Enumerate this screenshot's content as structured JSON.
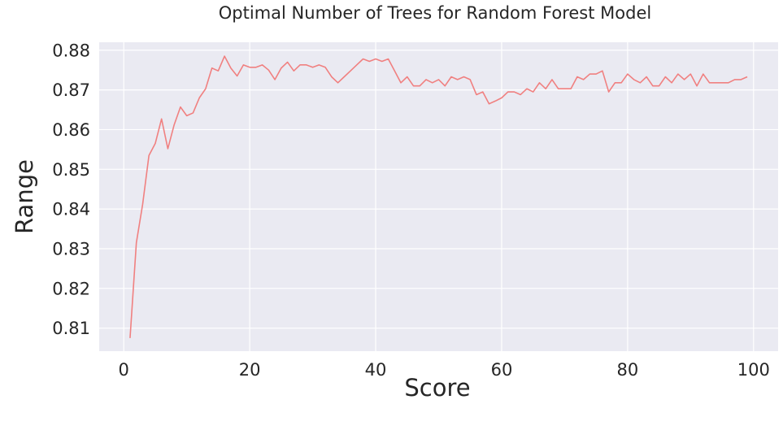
{
  "chart_data": {
    "type": "line",
    "title": "Optimal Number of Trees for Random Forest Model",
    "xlabel": "Score",
    "ylabel": "Range",
    "xlim": [
      -3.9,
      103.9
    ],
    "ylim": [
      0.8042,
      0.882
    ],
    "xticks": [
      0,
      20,
      40,
      60,
      80,
      100
    ],
    "yticks": [
      0.81,
      0.82,
      0.83,
      0.84,
      0.85,
      0.86,
      0.87,
      0.88
    ],
    "grid": true,
    "line_color": "#f08080",
    "background_color": "#eaeaf2",
    "series": [
      {
        "x": [
          1,
          2,
          3,
          4,
          5,
          6,
          7,
          8,
          9,
          10,
          11,
          12,
          13,
          14,
          15,
          16,
          17,
          18,
          19,
          20,
          21,
          22,
          23,
          24,
          25,
          26,
          27,
          28,
          29,
          30,
          31,
          32,
          33,
          34,
          35,
          36,
          37,
          38,
          39,
          40,
          41,
          42,
          43,
          44,
          45,
          46,
          47,
          48,
          49,
          50,
          51,
          52,
          53,
          54,
          55,
          56,
          57,
          58,
          59,
          60,
          61,
          62,
          63,
          64,
          65,
          66,
          67,
          68,
          69,
          70,
          71,
          72,
          73,
          74,
          75,
          76,
          77,
          78,
          79,
          80,
          81,
          82,
          83,
          84,
          85,
          86,
          87,
          88,
          89,
          90,
          91,
          92,
          93,
          94,
          95,
          96,
          97,
          98,
          99
        ],
        "values": [
          0.8075,
          0.8315,
          0.8412,
          0.8535,
          0.8565,
          0.8627,
          0.8552,
          0.8612,
          0.8657,
          0.8635,
          0.8642,
          0.868,
          0.8703,
          0.8755,
          0.8748,
          0.8785,
          0.8755,
          0.8735,
          0.8763,
          0.8757,
          0.8757,
          0.8763,
          0.875,
          0.8726,
          0.8755,
          0.877,
          0.8748,
          0.8763,
          0.8763,
          0.8757,
          0.8763,
          0.8757,
          0.8733,
          0.8718,
          0.8733,
          0.8748,
          0.8763,
          0.8778,
          0.8772,
          0.8778,
          0.8772,
          0.8778,
          0.8748,
          0.8718,
          0.8733,
          0.871,
          0.871,
          0.8726,
          0.8718,
          0.8726,
          0.871,
          0.8733,
          0.8726,
          0.8733,
          0.8726,
          0.8688,
          0.8695,
          0.8665,
          0.8672,
          0.868,
          0.8695,
          0.8695,
          0.8688,
          0.8703,
          0.8695,
          0.8718,
          0.8703,
          0.8726,
          0.8703,
          0.8703,
          0.8703,
          0.8733,
          0.8726,
          0.874,
          0.874,
          0.8748,
          0.8695,
          0.8718,
          0.8718,
          0.874,
          0.8726,
          0.8718,
          0.8733,
          0.871,
          0.871,
          0.8733,
          0.8718,
          0.874,
          0.8726,
          0.874,
          0.871,
          0.874,
          0.8718,
          0.8718,
          0.8718,
          0.8718,
          0.8726,
          0.8726,
          0.8733
        ]
      }
    ]
  }
}
